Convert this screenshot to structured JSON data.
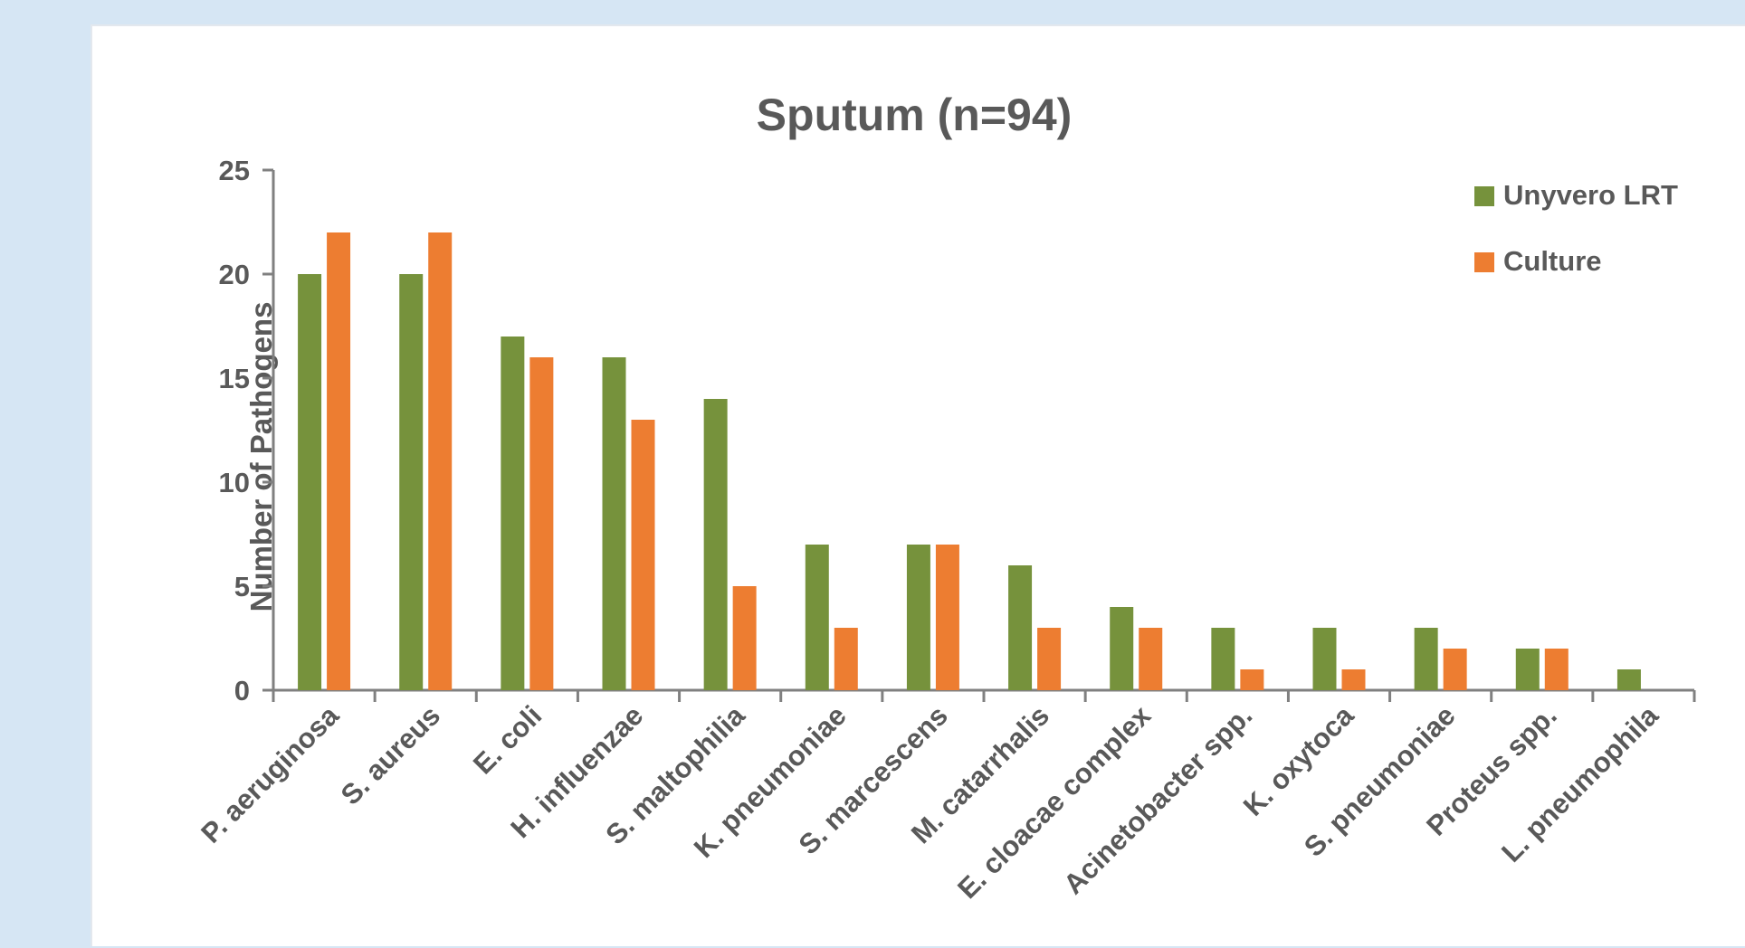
{
  "chart_data": {
    "type": "bar",
    "title": "Sputum (n=94)",
    "xlabel": "",
    "ylabel": "Number of Pathogens",
    "ylim": [
      0,
      25
    ],
    "yticks": [
      0,
      5,
      10,
      15,
      20,
      25
    ],
    "grid": false,
    "legend_position": "top-right",
    "categories": [
      "P. aeruginosa",
      "S. aureus",
      "E. coli",
      "H. influenzae",
      "S. maltophilia",
      "K. pneumoniae",
      "S. marcescens",
      "M. catarrhalis",
      "E. cloacae complex",
      "Acinetobacter spp.",
      "K. oxytoca",
      "S. pneumoniae",
      "Proteus spp.",
      "L. pneumophila"
    ],
    "series": [
      {
        "name": "Unyvero LRT",
        "color": "#76923c",
        "values": [
          20,
          20,
          17,
          16,
          14,
          7,
          7,
          6,
          4,
          3,
          3,
          3,
          2,
          1
        ]
      },
      {
        "name": "Culture",
        "color": "#ed7d31",
        "values": [
          22,
          22,
          16,
          13,
          5,
          3,
          7,
          3,
          3,
          1,
          1,
          2,
          2,
          0
        ]
      }
    ]
  }
}
